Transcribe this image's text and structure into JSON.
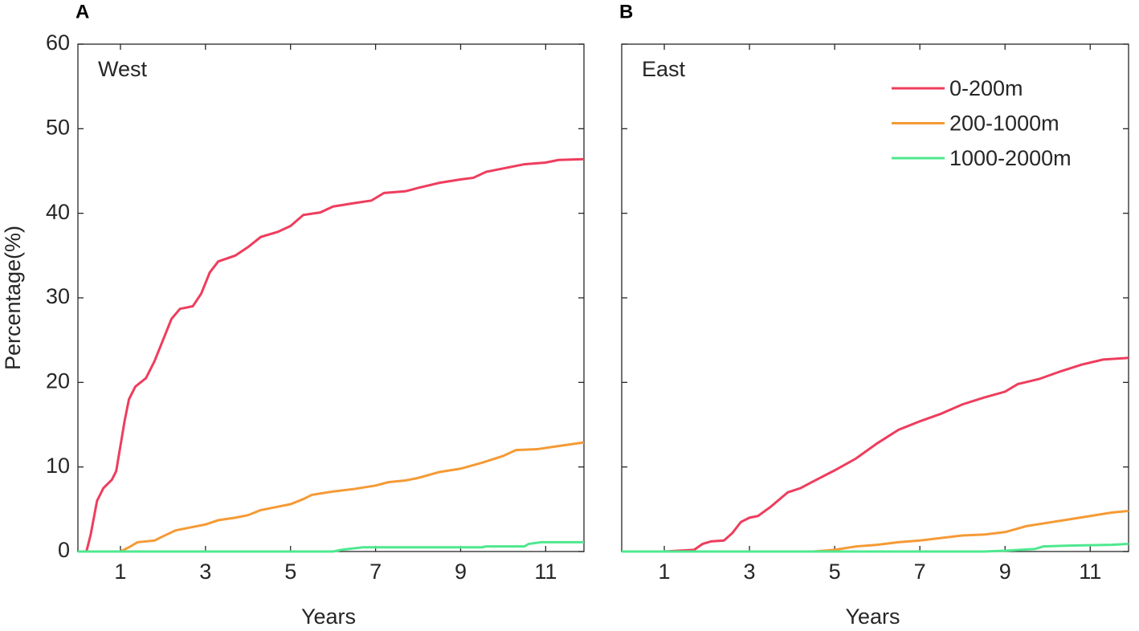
{
  "chart_data": [
    {
      "type": "line",
      "label": "A",
      "title": "West",
      "xlabel": "Years",
      "ylabel": "Percentage(%)",
      "xlim": [
        0,
        11.9
      ],
      "ylim": [
        0,
        60
      ],
      "xticks": [
        1,
        3,
        5,
        7,
        9,
        11
      ],
      "yticks": [
        0,
        10,
        20,
        30,
        40,
        50,
        60
      ],
      "series": [
        {
          "color": "#ee3d5d",
          "x": [
            0.2,
            0.3,
            0.45,
            0.6,
            0.8,
            0.9,
            1.0,
            1.1,
            1.2,
            1.35,
            1.6,
            1.8,
            2.0,
            2.2,
            2.4,
            2.7,
            2.9,
            3.1,
            3.3,
            3.7,
            4.0,
            4.3,
            4.7,
            5.0,
            5.3,
            5.7,
            6.0,
            6.5,
            6.9,
            7.2,
            7.7,
            8.0,
            8.5,
            9.0,
            9.3,
            9.6,
            10.0,
            10.5,
            11.0,
            11.3,
            11.9
          ],
          "values": [
            0,
            2,
            6,
            7.5,
            8.5,
            9.5,
            12.5,
            15.5,
            18,
            19.5,
            20.5,
            22.5,
            25,
            27.5,
            28.7,
            29,
            30.5,
            33,
            34.3,
            35,
            36,
            37.2,
            37.8,
            38.5,
            39.8,
            40.1,
            40.8,
            41.2,
            41.5,
            42.4,
            42.6,
            43,
            43.6,
            44,
            44.2,
            44.9,
            45.3,
            45.8,
            46,
            46.3,
            46.4
          ]
        },
        {
          "color": "#f59a35",
          "x": [
            0,
            1.0,
            1.2,
            1.4,
            1.8,
            2.0,
            2.3,
            2.7,
            3.0,
            3.3,
            3.7,
            4.0,
            4.3,
            4.7,
            5.0,
            5.3,
            5.5,
            6.0,
            6.5,
            7.0,
            7.3,
            7.7,
            8.0,
            8.5,
            9.0,
            9.5,
            10.0,
            10.3,
            10.8,
            11.2,
            11.9
          ],
          "values": [
            0,
            0,
            0.5,
            1.1,
            1.3,
            1.8,
            2.5,
            2.9,
            3.2,
            3.7,
            4.0,
            4.3,
            4.9,
            5.3,
            5.6,
            6.2,
            6.7,
            7.1,
            7.4,
            7.8,
            8.2,
            8.4,
            8.7,
            9.4,
            9.8,
            10.5,
            11.3,
            12,
            12.1,
            12.4,
            12.9
          ]
        },
        {
          "color": "#4ee88f",
          "x": [
            0,
            6.0,
            6.2,
            6.7,
            9.5,
            9.6,
            10.5,
            10.6,
            10.9,
            11.9
          ],
          "values": [
            0,
            0,
            0.2,
            0.5,
            0.5,
            0.6,
            0.6,
            0.9,
            1.1,
            1.1
          ]
        }
      ]
    },
    {
      "type": "line",
      "label": "B",
      "title": "East",
      "xlabel": "Years",
      "legend": "upper right",
      "xlim": [
        0,
        11.9
      ],
      "ylim": [
        0,
        60
      ],
      "xticks": [
        1,
        3,
        5,
        7,
        9,
        11
      ],
      "yticks": [
        0,
        10,
        20,
        30,
        40,
        50,
        60
      ],
      "series": [
        {
          "name": "0-200m",
          "color": "#ee3d5d",
          "x": [
            0,
            1.0,
            1.7,
            1.9,
            2.1,
            2.4,
            2.6,
            2.8,
            3.0,
            3.2,
            3.5,
            3.9,
            4.2,
            4.5,
            5.0,
            5.5,
            6.0,
            6.5,
            7.0,
            7.5,
            8.0,
            8.5,
            9.0,
            9.3,
            9.8,
            10.3,
            10.8,
            11.3,
            11.9
          ],
          "values": [
            0,
            0,
            0.2,
            0.9,
            1.2,
            1.3,
            2.2,
            3.5,
            4.0,
            4.2,
            5.3,
            7.0,
            7.5,
            8.3,
            9.6,
            11.0,
            12.8,
            14.4,
            15.4,
            16.3,
            17.4,
            18.2,
            18.9,
            19.8,
            20.4,
            21.3,
            22.1,
            22.7,
            22.9
          ]
        },
        {
          "name": "200-1000m",
          "color": "#f59a35",
          "x": [
            0,
            4.5,
            5.0,
            5.5,
            6.0,
            6.5,
            7.0,
            7.5,
            8.0,
            8.5,
            9.0,
            9.5,
            10.0,
            10.5,
            11.0,
            11.5,
            11.9
          ],
          "values": [
            0,
            0,
            0.2,
            0.6,
            0.8,
            1.1,
            1.3,
            1.6,
            1.9,
            2.0,
            2.3,
            3.0,
            3.4,
            3.8,
            4.2,
            4.6,
            4.8
          ]
        },
        {
          "name": "1000-2000m",
          "color": "#4ee88f",
          "x": [
            0,
            8.5,
            9.0,
            9.7,
            9.9,
            10.5,
            11.5,
            11.9
          ],
          "values": [
            0,
            0,
            0.1,
            0.3,
            0.6,
            0.7,
            0.8,
            0.9
          ]
        }
      ]
    }
  ]
}
